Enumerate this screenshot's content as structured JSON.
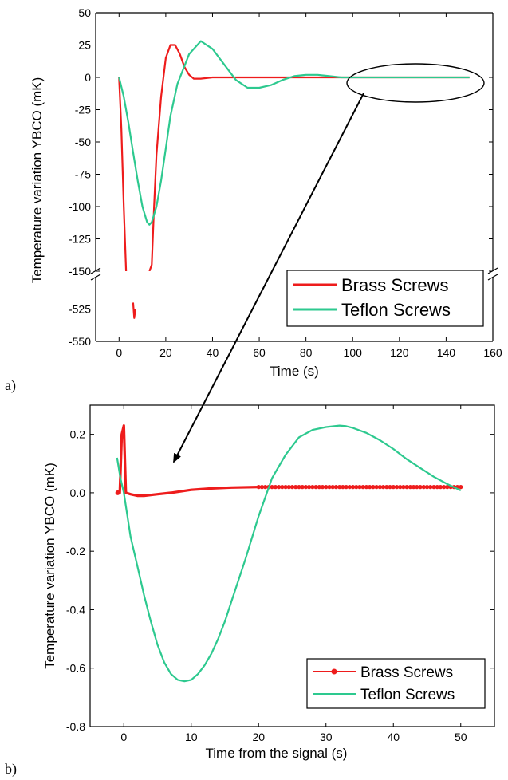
{
  "colors": {
    "brass": "#ee1c1c",
    "teflon": "#2dc98f",
    "axis": "#000000"
  },
  "panel_labels": {
    "a": "a)",
    "b": "b)"
  },
  "chart_data": [
    {
      "type": "line",
      "xlabel": "Time (s)",
      "ylabel": "Temperature variation YBCO (mK)",
      "xlim": [
        -10,
        160
      ],
      "xticks": [
        0,
        20,
        40,
        60,
        80,
        100,
        120,
        140,
        160
      ],
      "y_upper_range": [
        -150,
        50
      ],
      "y_upper_ticks": [
        50,
        25,
        0,
        -25,
        -50,
        -75,
        -100,
        -125,
        -150
      ],
      "y_lower_range": [
        -550,
        -500
      ],
      "y_lower_ticks": [
        -525,
        -550
      ],
      "axis_break": "between -150 and -500",
      "legend_position": "bottom-right",
      "grid": false,
      "annotation": "ellipse around t=100-150 s with arrow pointing to panel b",
      "series": [
        {
          "name": "Brass Screws",
          "x": [
            0,
            1,
            2,
            3,
            4,
            5,
            6,
            6.5,
            7,
            8,
            9,
            10,
            11,
            12,
            13,
            14,
            15,
            16,
            18,
            20,
            22,
            24,
            26,
            28,
            30,
            32,
            35,
            40,
            45,
            50,
            60,
            80,
            100,
            150
          ],
          "y": [
            0,
            -40,
            -100,
            -150,
            -420,
            -490,
            -520,
            -532,
            -525,
            -490,
            -420,
            -300,
            -220,
            -160,
            -150,
            -145,
            -100,
            -60,
            -15,
            15,
            25,
            25,
            18,
            8,
            2,
            -1,
            -1,
            0,
            0,
            0,
            0,
            0,
            0,
            0
          ]
        },
        {
          "name": "Teflon Screws",
          "x": [
            0,
            2,
            4,
            6,
            8,
            10,
            12,
            13,
            14,
            16,
            18,
            20,
            22,
            25,
            30,
            35,
            40,
            45,
            50,
            55,
            60,
            65,
            70,
            75,
            80,
            85,
            90,
            95,
            100,
            150
          ],
          "y": [
            0,
            -15,
            -35,
            -58,
            -80,
            -100,
            -112,
            -114,
            -112,
            -100,
            -80,
            -55,
            -30,
            -5,
            18,
            28,
            22,
            10,
            -2,
            -8,
            -8,
            -6,
            -2,
            1,
            2,
            2,
            1,
            0,
            0,
            0
          ]
        }
      ]
    },
    {
      "type": "line",
      "xlabel": "Time from the signal (s)",
      "ylabel": "Temperature variation YBCO (mK)",
      "xlim": [
        -5,
        55
      ],
      "xticks": [
        0,
        10,
        20,
        30,
        40,
        50
      ],
      "ylim": [
        -0.8,
        0.3
      ],
      "yticks": [
        0.2,
        0.0,
        -0.2,
        -0.4,
        -0.6,
        -0.8
      ],
      "legend_position": "bottom-right",
      "grid": false,
      "series": [
        {
          "name": "Brass Screws",
          "x": [
            -1,
            -0.6,
            -0.3,
            0,
            0.3,
            1,
            2,
            3,
            5,
            7,
            10,
            13,
            16,
            20,
            30,
            40,
            50
          ],
          "y": [
            0.0,
            0.0,
            0.2,
            0.23,
            0.0,
            -0.005,
            -0.01,
            -0.01,
            -0.005,
            0.0,
            0.01,
            0.015,
            0.018,
            0.02,
            0.02,
            0.02,
            0.02
          ],
          "marker_x_start": 20,
          "marker_spacing": 0.5
        },
        {
          "name": "Teflon Screws",
          "x": [
            -1,
            -0.5,
            0,
            1,
            2,
            3,
            4,
            5,
            6,
            7,
            8,
            9,
            10,
            11,
            12,
            13,
            14,
            15,
            16,
            18,
            20,
            22,
            24,
            26,
            28,
            30,
            32,
            33,
            34,
            36,
            38,
            40,
            42,
            44,
            46,
            48,
            50
          ],
          "y": [
            0.12,
            0.05,
            0.0,
            -0.15,
            -0.25,
            -0.35,
            -0.44,
            -0.52,
            -0.58,
            -0.62,
            -0.64,
            -0.645,
            -0.64,
            -0.62,
            -0.59,
            -0.55,
            -0.5,
            -0.44,
            -0.37,
            -0.23,
            -0.08,
            0.05,
            0.13,
            0.19,
            0.215,
            0.225,
            0.23,
            0.228,
            0.222,
            0.205,
            0.18,
            0.15,
            0.115,
            0.085,
            0.055,
            0.03,
            0.008
          ]
        }
      ]
    }
  ]
}
